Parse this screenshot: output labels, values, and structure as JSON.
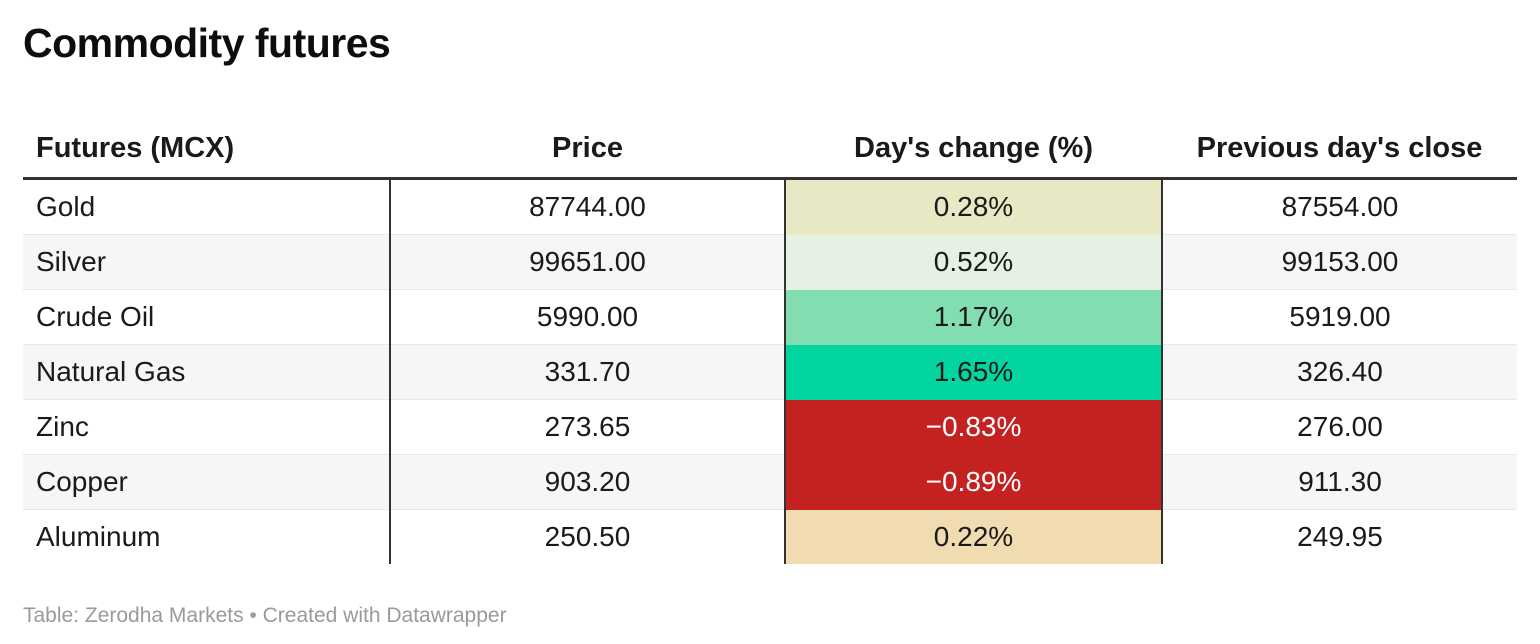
{
  "title": "Commodity futures",
  "table": {
    "columns": [
      "Futures (MCX)",
      "Price",
      "Day's change (%)",
      "Previous day's close"
    ],
    "rows": [
      {
        "name": "Gold",
        "price": "87744.00",
        "change": "0.28%",
        "prev_close": "87554.00",
        "change_bg": "#e9e8c4",
        "change_fg": "#1a1a1a"
      },
      {
        "name": "Silver",
        "price": "99651.00",
        "change": "0.52%",
        "prev_close": "99153.00",
        "change_bg": "#e4f1e3",
        "change_fg": "#1a1a1a"
      },
      {
        "name": "Crude Oil",
        "price": "5990.00",
        "change": "1.17%",
        "prev_close": "5919.00",
        "change_bg": "#82ddb0",
        "change_fg": "#1a1a1a"
      },
      {
        "name": "Natural Gas",
        "price": "331.70",
        "change": "1.65%",
        "prev_close": "326.40",
        "change_bg": "#03d5a0",
        "change_fg": "#1a1a1a"
      },
      {
        "name": "Zinc",
        "price": "273.65",
        "change": "−0.83%",
        "prev_close": "276.00",
        "change_bg": "#c32221",
        "change_fg": "#ffffff"
      },
      {
        "name": "Copper",
        "price": "903.20",
        "change": "−0.89%",
        "prev_close": "911.30",
        "change_bg": "#c32221",
        "change_fg": "#ffffff"
      },
      {
        "name": "Aluminum",
        "price": "250.50",
        "change": "0.22%",
        "prev_close": "249.95",
        "change_bg": "#f1dbb1",
        "change_fg": "#1a1a1a"
      }
    ]
  },
  "footer": "Table: Zerodha Markets • Created with Datawrapper",
  "colors": {
    "header_rule": "#323232",
    "row_stripe": "#f6f6f6",
    "row_separator": "#e8e8e8",
    "footer_text": "#9a9a9a",
    "negative_cell": "#c32221",
    "strong_positive_cell": "#03d5a0"
  },
  "chart_data": {
    "type": "table",
    "title": "Commodity futures",
    "columns": [
      "Futures (MCX)",
      "Price",
      "Day's change (%)",
      "Previous day's close"
    ],
    "rows": [
      [
        "Gold",
        87744.0,
        0.28,
        87554.0
      ],
      [
        "Silver",
        99651.0,
        0.52,
        99153.0
      ],
      [
        "Crude Oil",
        5990.0,
        1.17,
        5919.0
      ],
      [
        "Natural Gas",
        331.7,
        1.65,
        326.4
      ],
      [
        "Zinc",
        273.65,
        -0.83,
        276.0
      ],
      [
        "Copper",
        903.2,
        -0.89,
        911.3
      ],
      [
        "Aluminum",
        250.5,
        0.22,
        249.95
      ]
    ],
    "legend_position": "none",
    "notes": "Day's change column is heatmap-colored: green for positive, red for negative"
  }
}
